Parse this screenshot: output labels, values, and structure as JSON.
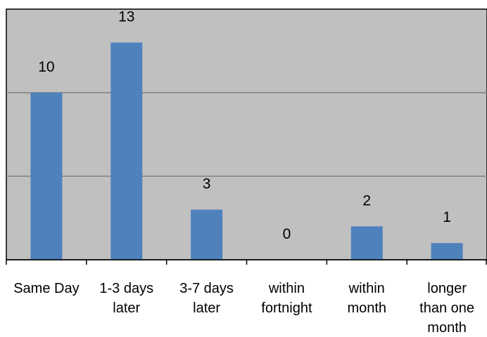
{
  "chart_data": {
    "type": "bar",
    "categories": [
      [
        "Same Day"
      ],
      [
        "1-3 days",
        "later"
      ],
      [
        "3-7 days",
        "later"
      ],
      [
        "within",
        "fortnight"
      ],
      [
        "within",
        "month"
      ],
      [
        "longer",
        "than one",
        "month"
      ]
    ],
    "values": [
      10,
      13,
      3,
      0,
      2,
      1
    ],
    "data_labels": [
      "10",
      "13",
      "3",
      "0",
      "2",
      "1"
    ],
    "title": "",
    "xlabel": "",
    "ylabel": "",
    "ylim": [
      0,
      15
    ],
    "grid": true,
    "gridline_values": [
      5,
      10
    ],
    "legend": "none",
    "colors": {
      "bar": "#4f81bd",
      "plot_background": "#c0c0c0",
      "gridline": "#808080",
      "axis": "#000000"
    }
  }
}
